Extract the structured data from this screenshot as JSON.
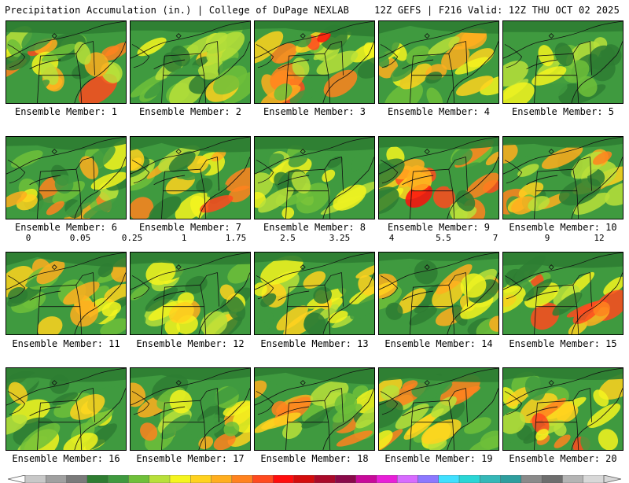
{
  "header": {
    "title": "Precipitation Accumulation (in.) | College of DuPage NEXLAB",
    "run_info": "12Z GEFS | F216 Valid: 12Z THU OCT 02 2025"
  },
  "legend": {
    "ticks": [
      "0",
      "0.05",
      "0.25",
      "1",
      "1.75",
      "2.5",
      "3.25",
      "4",
      "5.5",
      "7",
      "9",
      "12"
    ],
    "colors": [
      "#c8c8c8",
      "#a0a0a0",
      "#7a7a7a",
      "#2e7d32",
      "#3f9a3f",
      "#6fc03a",
      "#b8e03a",
      "#f5f51f",
      "#ffd21f",
      "#ffae1f",
      "#ff821f",
      "#ff4a1f",
      "#ff0d0d",
      "#d40d0d",
      "#aa0a2a",
      "#8a0a4a",
      "#c80a9a",
      "#e81fd8",
      "#d76bff",
      "#8c78ff",
      "#40e0ff",
      "#2ad6d6",
      "#35b8b8",
      "#2e9e9e",
      "#8a8a8a",
      "#6e6e6e",
      "#b4b4b4",
      "#d8d8d8"
    ]
  },
  "members": [
    {
      "label": "Ensemble Member: 1",
      "intensity": 0.85
    },
    {
      "label": "Ensemble Member: 2",
      "intensity": 0.55
    },
    {
      "label": "Ensemble Member: 3",
      "intensity": 0.95
    },
    {
      "label": "Ensemble Member: 4",
      "intensity": 0.7
    },
    {
      "label": "Ensemble Member: 5",
      "intensity": 0.45
    },
    {
      "label": "Ensemble Member: 6",
      "intensity": 0.8
    },
    {
      "label": "Ensemble Member: 7",
      "intensity": 0.9
    },
    {
      "label": "Ensemble Member: 8",
      "intensity": 0.5
    },
    {
      "label": "Ensemble Member: 9",
      "intensity": 0.92
    },
    {
      "label": "Ensemble Member: 10",
      "intensity": 0.75
    },
    {
      "label": "Ensemble Member: 11",
      "intensity": 0.72
    },
    {
      "label": "Ensemble Member: 12",
      "intensity": 0.65
    },
    {
      "label": "Ensemble Member: 13",
      "intensity": 0.6
    },
    {
      "label": "Ensemble Member: 14",
      "intensity": 0.7
    },
    {
      "label": "Ensemble Member: 15",
      "intensity": 0.98
    },
    {
      "label": "Ensemble Member: 16",
      "intensity": 0.6
    },
    {
      "label": "Ensemble Member: 17",
      "intensity": 0.75
    },
    {
      "label": "Ensemble Member: 18",
      "intensity": 0.85
    },
    {
      "label": "Ensemble Member: 19",
      "intensity": 0.8
    },
    {
      "label": "Ensemble Member: 20",
      "intensity": 0.9
    }
  ]
}
